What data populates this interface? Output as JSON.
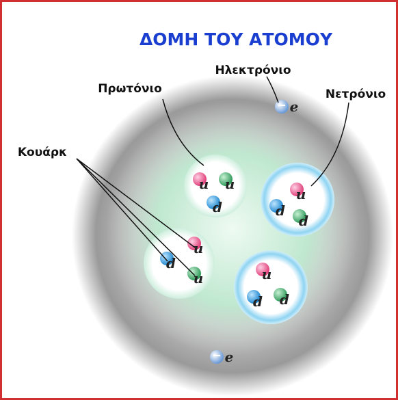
{
  "title": "ΔΟΜΗ ΤΟΥ ΑΤΟΜΟΥ",
  "labels": {
    "proton": "Πρωτόνιο",
    "electron": "Ηλεκτρόνιο",
    "neutron": "Νετρόνιο",
    "quark": "Κουάρκ"
  },
  "nucleons": [
    {
      "quarks": [
        "u",
        "u",
        "d"
      ]
    },
    {
      "quarks": [
        "u",
        "d",
        "d"
      ]
    },
    {
      "quarks": [
        "u",
        "d",
        "u"
      ]
    },
    {
      "quarks": [
        "u",
        "d",
        "d"
      ]
    }
  ],
  "electrons": [
    "e",
    "e"
  ]
}
